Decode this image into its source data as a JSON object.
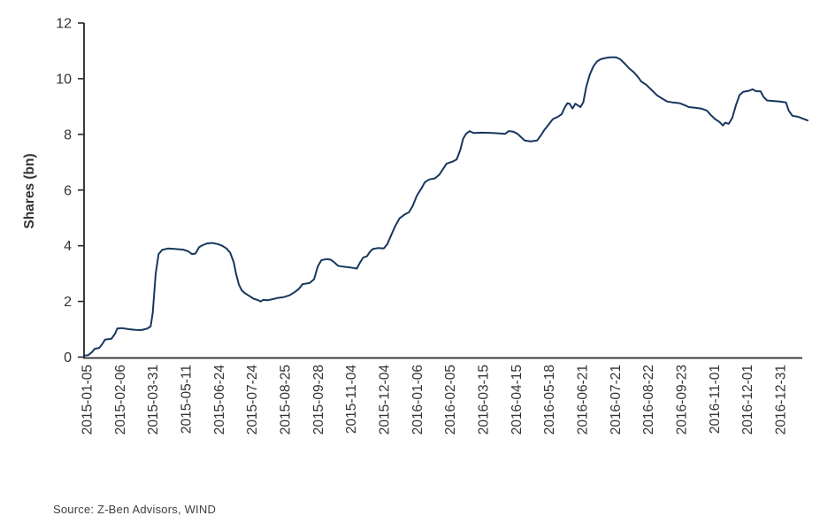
{
  "colors": {
    "line": "#17375e",
    "axis": "#262626",
    "tick_text": "#333333",
    "background": "#ffffff"
  },
  "footer": {
    "source": "Source: Z-Ben Advisors, WIND"
  },
  "chart_data": {
    "type": "line",
    "title": "",
    "xlabel": "",
    "ylabel": "Shares (bn)",
    "ylim": [
      0,
      12
    ],
    "yticks": [
      0,
      2,
      4,
      6,
      8,
      10,
      12
    ],
    "grid": false,
    "legend": "none",
    "categories": [
      "2015-01-05",
      "2015-02-06",
      "2015-03-31",
      "2015-05-11",
      "2015-06-24",
      "2015-07-24",
      "2015-08-25",
      "2015-09-28",
      "2015-11-04",
      "2015-12-04",
      "2016-01-06",
      "2016-02-05",
      "2016-03-15",
      "2016-04-15",
      "2016-05-18",
      "2016-06-21",
      "2016-07-21",
      "2016-08-22",
      "2016-09-23",
      "2016-11-01",
      "2016-12-01",
      "2016-12-31"
    ],
    "values_at_ticks": [
      0.05,
      1.05,
      1.6,
      3.85,
      4.05,
      2.05,
      2.15,
      3.4,
      3.2,
      3.9,
      6.05,
      7.0,
      8.05,
      8.1,
      8.35,
      9.1,
      10.77,
      9.78,
      9.12,
      8.55,
      9.53,
      9.18
    ],
    "points": [
      [
        0.0,
        0.05
      ],
      [
        0.006,
        0.07
      ],
      [
        0.011,
        0.18
      ],
      [
        0.015,
        0.3
      ],
      [
        0.021,
        0.33
      ],
      [
        0.026,
        0.5
      ],
      [
        0.029,
        0.63
      ],
      [
        0.038,
        0.66
      ],
      [
        0.043,
        0.85
      ],
      [
        0.046,
        1.03
      ],
      [
        0.053,
        1.04
      ],
      [
        0.062,
        1.0
      ],
      [
        0.071,
        0.98
      ],
      [
        0.079,
        0.97
      ],
      [
        0.087,
        1.02
      ],
      [
        0.092,
        1.1
      ],
      [
        0.095,
        1.6
      ],
      [
        0.099,
        3.0
      ],
      [
        0.103,
        3.7
      ],
      [
        0.108,
        3.85
      ],
      [
        0.116,
        3.9
      ],
      [
        0.127,
        3.88
      ],
      [
        0.137,
        3.86
      ],
      [
        0.144,
        3.8
      ],
      [
        0.149,
        3.7
      ],
      [
        0.154,
        3.72
      ],
      [
        0.159,
        3.95
      ],
      [
        0.164,
        4.02
      ],
      [
        0.17,
        4.08
      ],
      [
        0.177,
        4.1
      ],
      [
        0.185,
        4.06
      ],
      [
        0.191,
        4.0
      ],
      [
        0.197,
        3.9
      ],
      [
        0.202,
        3.75
      ],
      [
        0.207,
        3.4
      ],
      [
        0.21,
        3.0
      ],
      [
        0.214,
        2.6
      ],
      [
        0.218,
        2.4
      ],
      [
        0.222,
        2.3
      ],
      [
        0.227,
        2.22
      ],
      [
        0.234,
        2.1
      ],
      [
        0.24,
        2.05
      ],
      [
        0.244,
        2.0
      ],
      [
        0.248,
        2.06
      ],
      [
        0.253,
        2.04
      ],
      [
        0.259,
        2.07
      ],
      [
        0.267,
        2.12
      ],
      [
        0.275,
        2.15
      ],
      [
        0.284,
        2.22
      ],
      [
        0.291,
        2.33
      ],
      [
        0.297,
        2.45
      ],
      [
        0.302,
        2.62
      ],
      [
        0.312,
        2.66
      ],
      [
        0.318,
        2.8
      ],
      [
        0.323,
        3.25
      ],
      [
        0.328,
        3.48
      ],
      [
        0.335,
        3.52
      ],
      [
        0.341,
        3.5
      ],
      [
        0.346,
        3.4
      ],
      [
        0.351,
        3.28
      ],
      [
        0.358,
        3.25
      ],
      [
        0.368,
        3.22
      ],
      [
        0.377,
        3.18
      ],
      [
        0.381,
        3.38
      ],
      [
        0.386,
        3.58
      ],
      [
        0.391,
        3.62
      ],
      [
        0.395,
        3.78
      ],
      [
        0.399,
        3.88
      ],
      [
        0.407,
        3.92
      ],
      [
        0.414,
        3.9
      ],
      [
        0.419,
        4.05
      ],
      [
        0.424,
        4.35
      ],
      [
        0.43,
        4.7
      ],
      [
        0.436,
        4.98
      ],
      [
        0.443,
        5.12
      ],
      [
        0.449,
        5.2
      ],
      [
        0.454,
        5.42
      ],
      [
        0.46,
        5.8
      ],
      [
        0.466,
        6.05
      ],
      [
        0.471,
        6.28
      ],
      [
        0.477,
        6.38
      ],
      [
        0.485,
        6.42
      ],
      [
        0.491,
        6.55
      ],
      [
        0.496,
        6.75
      ],
      [
        0.501,
        6.95
      ],
      [
        0.509,
        7.02
      ],
      [
        0.515,
        7.1
      ],
      [
        0.52,
        7.45
      ],
      [
        0.524,
        7.85
      ],
      [
        0.528,
        8.02
      ],
      [
        0.533,
        8.12
      ],
      [
        0.538,
        8.05
      ],
      [
        0.55,
        8.06
      ],
      [
        0.565,
        8.05
      ],
      [
        0.576,
        8.03
      ],
      [
        0.582,
        8.02
      ],
      [
        0.587,
        8.12
      ],
      [
        0.593,
        8.1
      ],
      [
        0.599,
        8.02
      ],
      [
        0.604,
        7.9
      ],
      [
        0.609,
        7.78
      ],
      [
        0.617,
        7.75
      ],
      [
        0.626,
        7.78
      ],
      [
        0.631,
        7.95
      ],
      [
        0.636,
        8.15
      ],
      [
        0.642,
        8.35
      ],
      [
        0.648,
        8.55
      ],
      [
        0.654,
        8.62
      ],
      [
        0.66,
        8.72
      ],
      [
        0.664,
        8.95
      ],
      [
        0.668,
        9.12
      ],
      [
        0.671,
        9.1
      ],
      [
        0.675,
        8.93
      ],
      [
        0.679,
        9.1
      ],
      [
        0.682,
        9.05
      ],
      [
        0.686,
        8.98
      ],
      [
        0.69,
        9.15
      ],
      [
        0.694,
        9.7
      ],
      [
        0.699,
        10.15
      ],
      [
        0.704,
        10.45
      ],
      [
        0.709,
        10.62
      ],
      [
        0.714,
        10.7
      ],
      [
        0.72,
        10.74
      ],
      [
        0.727,
        10.77
      ],
      [
        0.735,
        10.77
      ],
      [
        0.741,
        10.7
      ],
      [
        0.747,
        10.55
      ],
      [
        0.753,
        10.38
      ],
      [
        0.759,
        10.25
      ],
      [
        0.765,
        10.08
      ],
      [
        0.77,
        9.9
      ],
      [
        0.777,
        9.78
      ],
      [
        0.785,
        9.58
      ],
      [
        0.792,
        9.4
      ],
      [
        0.8,
        9.27
      ],
      [
        0.806,
        9.18
      ],
      [
        0.813,
        9.15
      ],
      [
        0.823,
        9.12
      ],
      [
        0.83,
        9.05
      ],
      [
        0.836,
        8.98
      ],
      [
        0.846,
        8.95
      ],
      [
        0.854,
        8.92
      ],
      [
        0.861,
        8.85
      ],
      [
        0.866,
        8.7
      ],
      [
        0.872,
        8.55
      ],
      [
        0.878,
        8.45
      ],
      [
        0.883,
        8.32
      ],
      [
        0.886,
        8.42
      ],
      [
        0.891,
        8.38
      ],
      [
        0.896,
        8.6
      ],
      [
        0.901,
        9.05
      ],
      [
        0.906,
        9.42
      ],
      [
        0.911,
        9.53
      ],
      [
        0.918,
        9.56
      ],
      [
        0.924,
        9.62
      ],
      [
        0.929,
        9.55
      ],
      [
        0.935,
        9.55
      ],
      [
        0.939,
        9.35
      ],
      [
        0.944,
        9.22
      ],
      [
        0.952,
        9.2
      ],
      [
        0.962,
        9.18
      ],
      [
        0.97,
        9.15
      ],
      [
        0.974,
        8.85
      ],
      [
        0.979,
        8.67
      ],
      [
        0.987,
        8.63
      ],
      [
        0.993,
        8.57
      ],
      [
        1.0,
        8.5
      ]
    ]
  }
}
